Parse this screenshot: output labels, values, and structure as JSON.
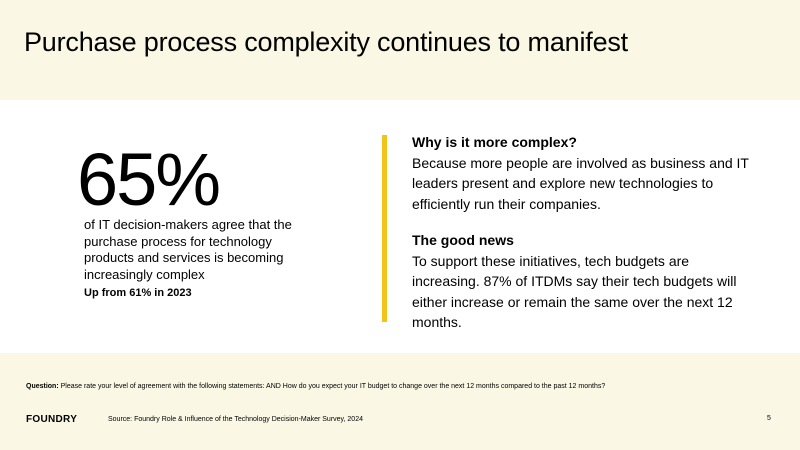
{
  "slide": {
    "title": "Purchase process complexity continues to manifest",
    "stat": {
      "value": "65%",
      "description": "of IT decision-makers agree that the purchase process for technology products and services is becoming increasingly complex",
      "sub": "Up from 61% in 2023"
    },
    "sections": [
      {
        "heading": "Why is it more complex?",
        "body": "Because more people are involved as business and IT leaders present and explore new technologies to efficiently run their companies."
      },
      {
        "heading": "The good news",
        "body": "To support these initiatives, tech budgets are increasing. 87% of ITDMs say their tech budgets will either increase or remain the same over the next 12 months."
      }
    ],
    "footer": {
      "question_label": "Question:",
      "question_text": " Please rate your level of agreement with the following statements: AND How do you expect your IT budget to change over the next 12 months compared to the past 12 months?",
      "logo": "FOUNDRY",
      "source": "Source: Foundry Role & Influence of the Technology Decision-Maker Survey, 2024",
      "page_number": "5"
    },
    "colors": {
      "background": "#fbf7e5",
      "accent": "#f2c318",
      "content_bg": "#ffffff"
    }
  }
}
